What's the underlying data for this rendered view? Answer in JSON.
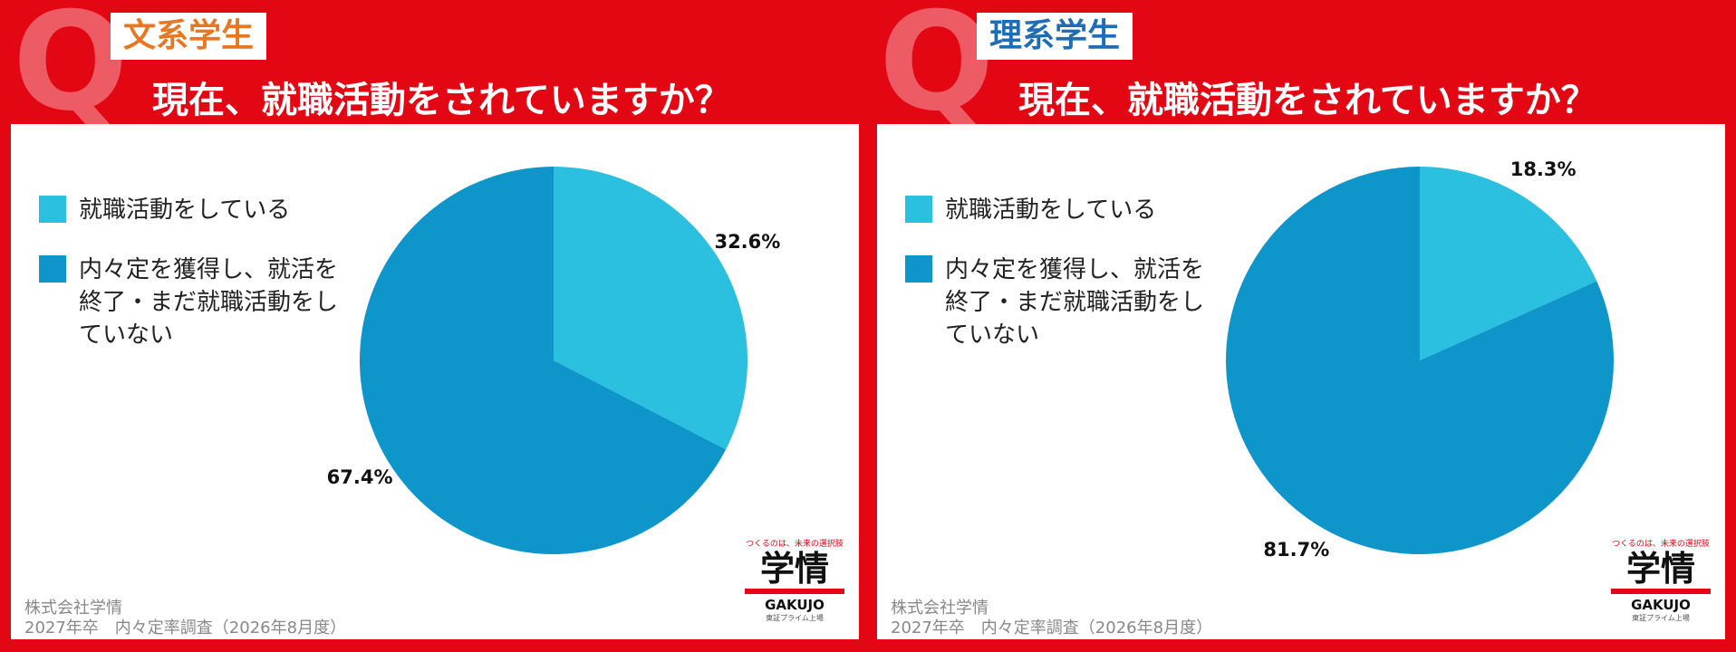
{
  "chart_data": [
    {
      "type": "pie",
      "question_mark": "Q",
      "badge": "文系学生",
      "badge_color": "#e87722",
      "title": "現在、就職活動をされていますか？",
      "categories": [
        "就職活動をしている",
        "内々定を獲得し、就活を終了・まだ就職活動をしていない"
      ],
      "values": [
        32.6,
        67.4
      ],
      "value_labels": [
        "32.6%",
        "67.4%"
      ],
      "colors": [
        "#2bc0e0",
        "#0e95c9"
      ],
      "footer": [
        "株式会社学情",
        "2027年卒　内々定率調査（2026年8月度）"
      ],
      "logo": {
        "tagline": "つくるのは、未来の選択肢",
        "name": "学情",
        "roman": "GAKUJO",
        "note": "東証プライム上場"
      }
    },
    {
      "type": "pie",
      "question_mark": "Q",
      "badge": "理系学生",
      "badge_color": "#1f6db5",
      "title": "現在、就職活動をされていますか？",
      "categories": [
        "就職活動をしている",
        "内々定を獲得し、就活を終了・まだ就職活動をしていない"
      ],
      "values": [
        18.3,
        81.7
      ],
      "value_labels": [
        "18.3%",
        "81.7%"
      ],
      "colors": [
        "#2bc0e0",
        "#0e95c9"
      ],
      "footer": [
        "株式会社学情",
        "2027年卒　内々定率調査（2026年8月度）"
      ],
      "logo": {
        "tagline": "つくるのは、未来の選択肢",
        "name": "学情",
        "roman": "GAKUJO",
        "note": "東証プライム上場"
      }
    }
  ]
}
